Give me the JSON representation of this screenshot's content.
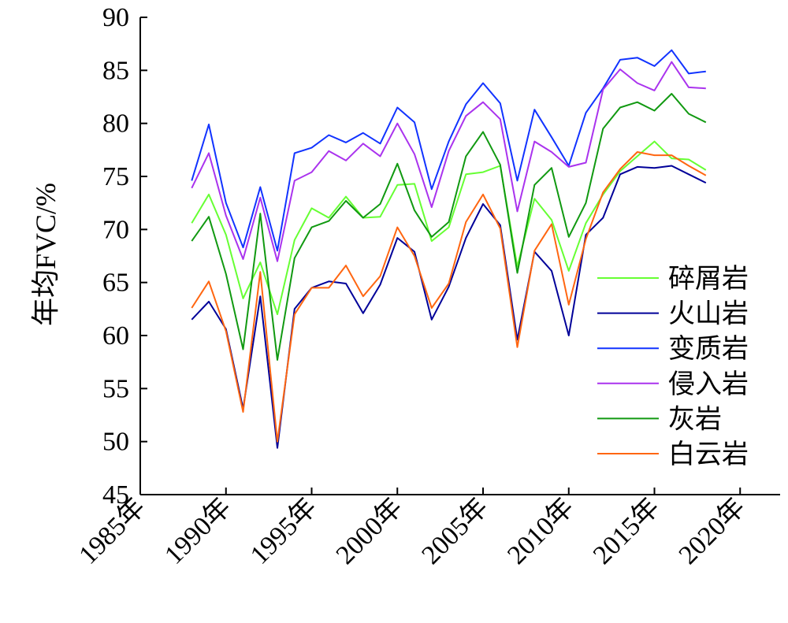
{
  "chart_data": {
    "type": "line",
    "title": "",
    "xlabel": "",
    "ylabel": "年均FVC/%",
    "xlim": [
      1985,
      2022
    ],
    "ylim": [
      45,
      90
    ],
    "grid": false,
    "legend_position": "right",
    "y_ticks": [
      "45",
      "50",
      "55",
      "60",
      "65",
      "70",
      "75",
      "80",
      "85",
      "90"
    ],
    "x_ticks": [
      {
        "value": 1985,
        "label": "1985年"
      },
      {
        "value": 1990,
        "label": "1990年"
      },
      {
        "value": 1995,
        "label": "1995年"
      },
      {
        "value": 2000,
        "label": "2000年"
      },
      {
        "value": 2005,
        "label": "2005年"
      },
      {
        "value": 2010,
        "label": "2010年"
      },
      {
        "value": 2015,
        "label": "2015年"
      },
      {
        "value": 2020,
        "label": "2020年"
      }
    ],
    "x": [
      1988,
      1989,
      1990,
      1991,
      1992,
      1993,
      1994,
      1995,
      1996,
      1997,
      1998,
      1999,
      2000,
      2001,
      2002,
      2003,
      2004,
      2005,
      2006,
      2007,
      2008,
      2009,
      2010,
      2011,
      2012,
      2013,
      2014,
      2015,
      2016,
      2017,
      2018
    ],
    "series": [
      {
        "name": "碎屑岩",
        "color": "#66ff33",
        "values": [
          70.6,
          73.3,
          69.5,
          63.5,
          66.9,
          62.0,
          69.0,
          72.0,
          71.1,
          73.1,
          71.1,
          71.2,
          74.2,
          74.3,
          68.9,
          70.2,
          75.2,
          75.4,
          76.0,
          66.5,
          72.9,
          70.9,
          66.1,
          70.6,
          73.3,
          75.5,
          76.9,
          78.3,
          76.7,
          76.6,
          75.6
        ]
      },
      {
        "name": "火山岩",
        "color": "#000099",
        "values": [
          61.5,
          63.2,
          60.6,
          53.1,
          63.7,
          49.4,
          62.5,
          64.5,
          65.1,
          64.9,
          62.1,
          64.8,
          69.2,
          67.9,
          61.5,
          64.6,
          69.2,
          72.4,
          70.4,
          59.6,
          67.9,
          66.1,
          60.0,
          69.5,
          71.1,
          75.2,
          75.9,
          75.8,
          76.0,
          75.2,
          74.4
        ]
      },
      {
        "name": "变质岩",
        "color": "#1133ff",
        "values": [
          74.6,
          79.9,
          72.5,
          68.3,
          74.0,
          68.0,
          77.2,
          77.7,
          78.9,
          78.2,
          79.1,
          78.1,
          81.5,
          80.1,
          73.8,
          78.3,
          81.8,
          83.8,
          81.9,
          74.6,
          81.3,
          78.7,
          76.0,
          81.0,
          83.3,
          86.0,
          86.2,
          85.4,
          86.9,
          84.7,
          84.9
        ]
      },
      {
        "name": "侵入岩",
        "color": "#aa33ee",
        "values": [
          73.9,
          77.2,
          71.3,
          67.2,
          73.0,
          67.0,
          74.6,
          75.4,
          77.4,
          76.5,
          78.1,
          76.9,
          80.0,
          77.1,
          72.1,
          77.4,
          80.7,
          82.0,
          80.4,
          71.7,
          78.3,
          77.3,
          75.9,
          76.3,
          83.2,
          85.1,
          83.8,
          83.1,
          85.8,
          83.4,
          83.3
        ]
      },
      {
        "name": "灰岩",
        "color": "#119911",
        "values": [
          68.9,
          71.2,
          65.8,
          58.7,
          71.5,
          57.7,
          67.3,
          70.2,
          70.8,
          72.7,
          71.1,
          72.4,
          76.2,
          71.8,
          69.3,
          70.7,
          76.9,
          79.2,
          76.1,
          65.9,
          74.2,
          75.8,
          69.3,
          72.5,
          79.5,
          81.5,
          82.0,
          81.2,
          82.8,
          80.9,
          80.1
        ]
      },
      {
        "name": "白云岩",
        "color": "#ff6611",
        "values": [
          62.6,
          65.1,
          60.4,
          52.8,
          66.0,
          50.0,
          62.0,
          64.5,
          64.5,
          66.6,
          63.7,
          65.6,
          70.2,
          67.5,
          62.6,
          64.9,
          70.7,
          73.3,
          70.1,
          58.9,
          68.0,
          70.5,
          62.9,
          69.1,
          73.5,
          75.7,
          77.3,
          77.0,
          77.0,
          76.0,
          75.1
        ]
      }
    ]
  }
}
